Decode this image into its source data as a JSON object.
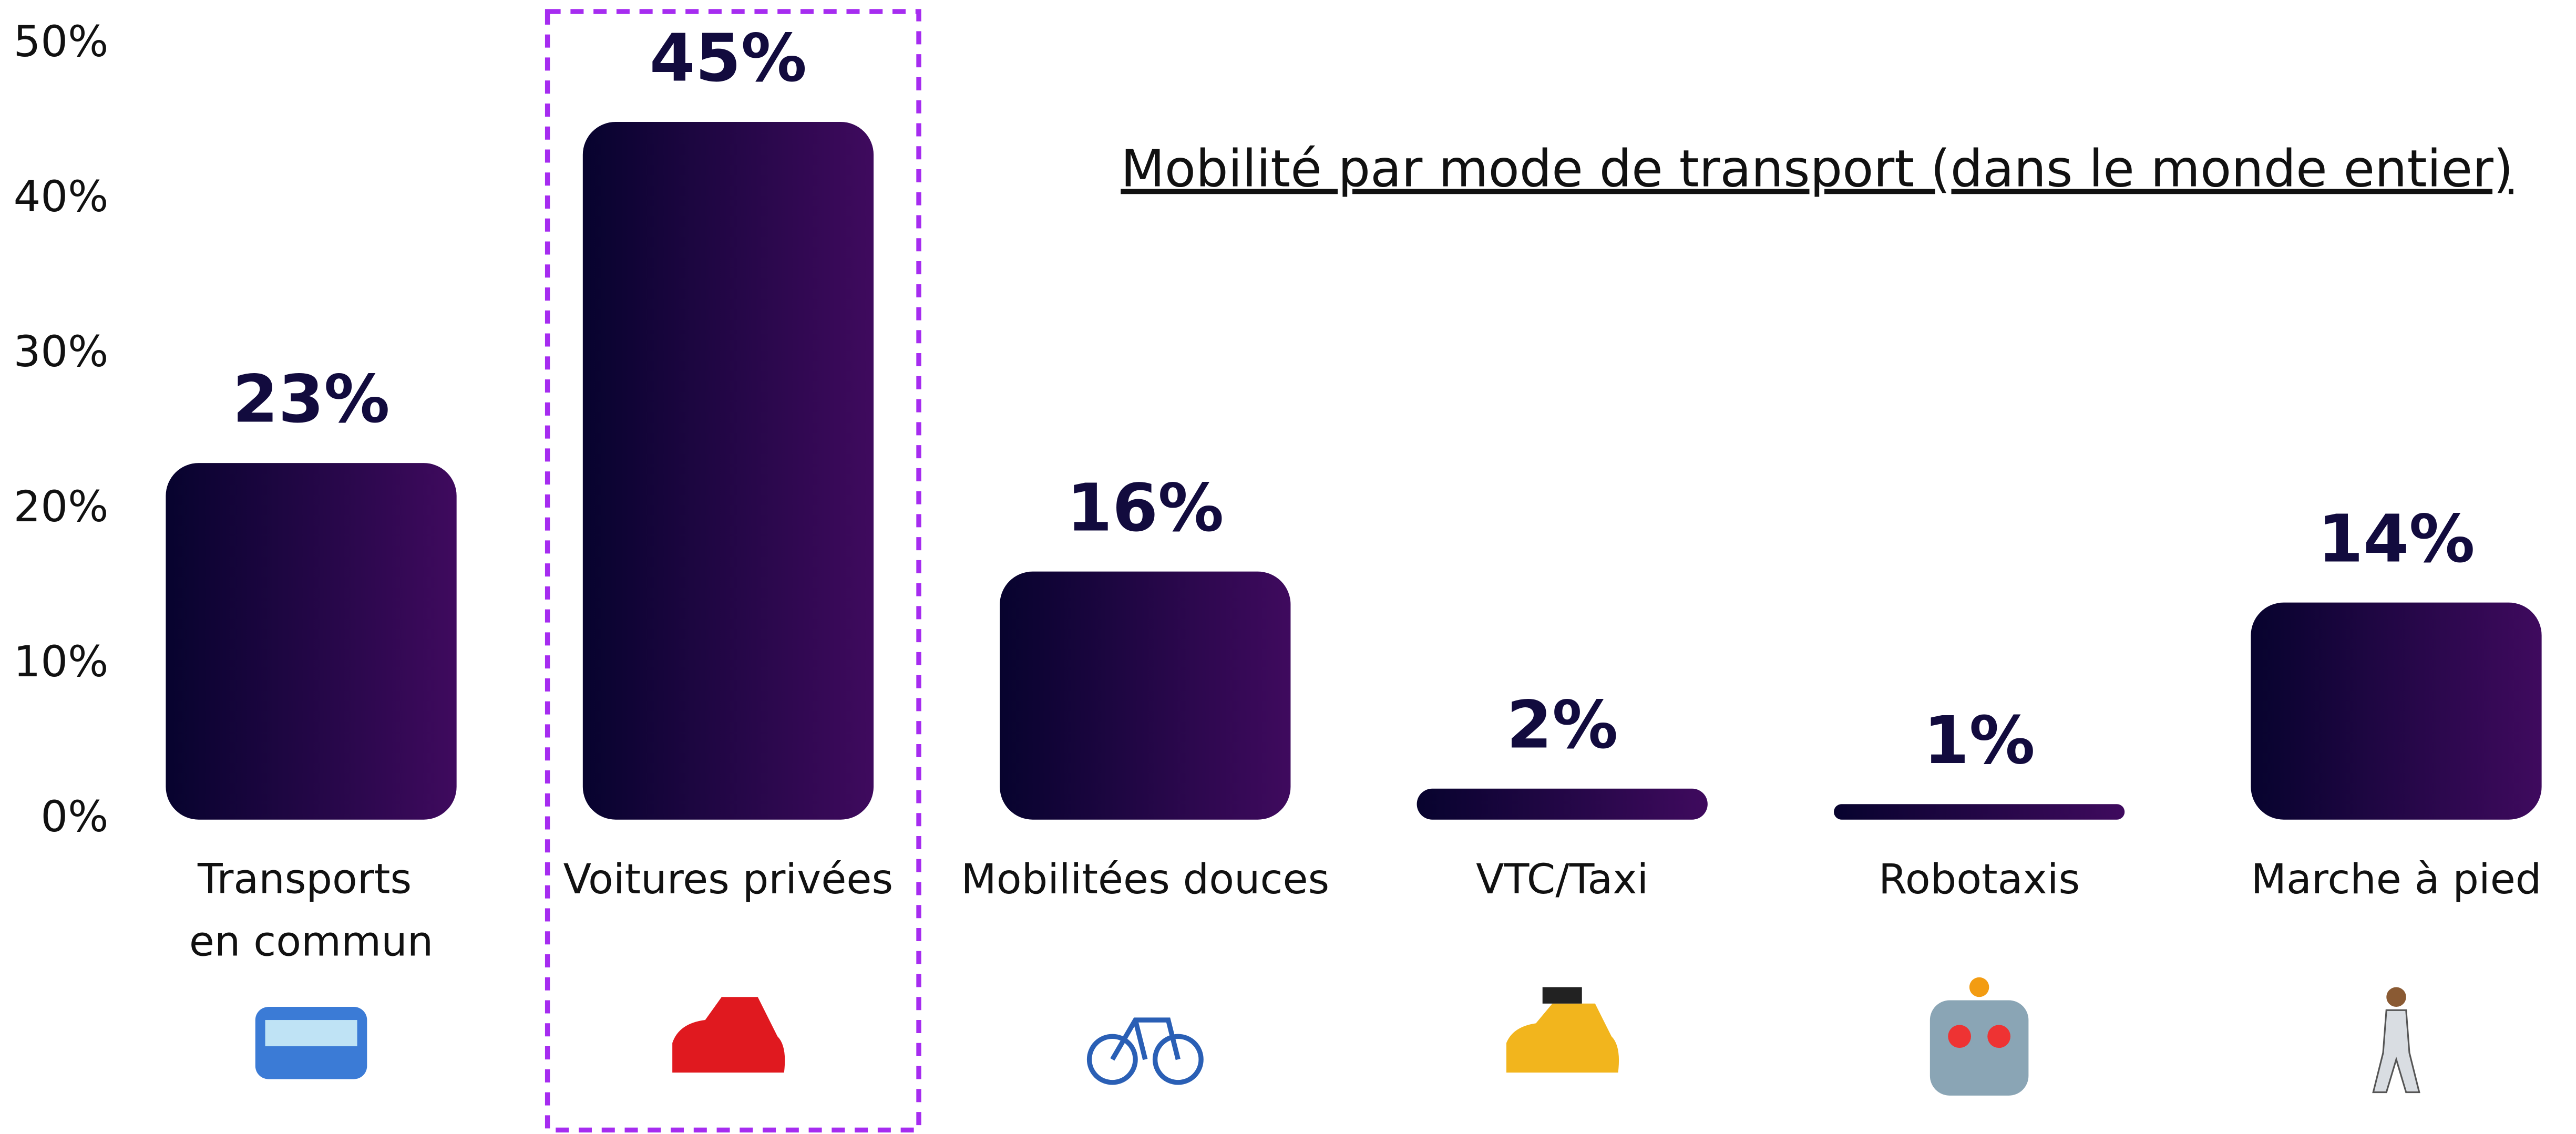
{
  "chart_data": {
    "type": "bar",
    "title": "Mobilité par mode de transport (dans le monde entier)",
    "categories": [
      "Transports en commun",
      "Voitures privées",
      "Mobilitées douces",
      "VTC/Taxi",
      "Robotaxis",
      "Marche à pied"
    ],
    "values": [
      23,
      45,
      16,
      2,
      1,
      14
    ],
    "value_labels": [
      "23%",
      "45%",
      "16%",
      "2%",
      "1%",
      "14%"
    ],
    "colors": [
      "#07032e",
      "#3f0a5e"
    ],
    "ylim": [
      0,
      50
    ],
    "yticks": [
      {
        "value": 0,
        "label": "0%"
      },
      {
        "value": 10,
        "label": "10%"
      },
      {
        "value": 20,
        "label": "20%"
      },
      {
        "value": 30,
        "label": "30%"
      },
      {
        "value": 40,
        "label": "40%"
      },
      {
        "value": 50,
        "label": "50%"
      }
    ],
    "grid": false,
    "highlight": 1,
    "highlight_color": "#a62cf0"
  }
}
